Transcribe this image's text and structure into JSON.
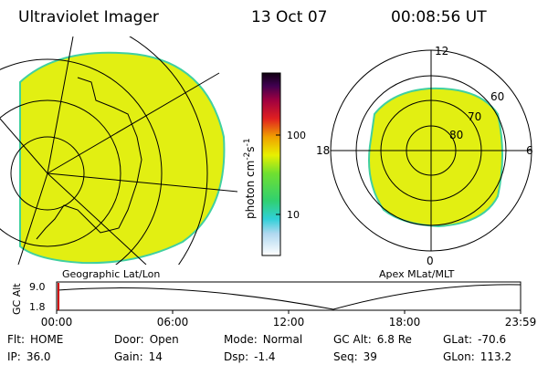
{
  "header": {
    "title": "Ultraviolet Imager",
    "date": "13 Oct 07",
    "time": "00:08:56 UT"
  },
  "colorbar": {
    "label": "photon cm",
    "exp1": "-2",
    "unit2": "s",
    "exp2": "-1",
    "tick_labels": [
      "100",
      "10"
    ]
  },
  "left_panel": {
    "label": "Geographic Lat/Lon"
  },
  "right_panel": {
    "label": "Apex MLat/MLT",
    "mlt_labels": [
      "12",
      "6",
      "0",
      "18"
    ],
    "mlat_labels": [
      "60",
      "70",
      "80"
    ]
  },
  "altitude_plot": {
    "axis_label": "GC Alt",
    "y_labels": [
      "9.0",
      "1.8"
    ],
    "x_labels": [
      "00:00",
      "06:00",
      "12:00",
      "18:00",
      "23:59"
    ]
  },
  "info": [
    [
      {
        "label": "Flt:",
        "value": "HOME"
      },
      {
        "label": "Door:",
        "value": "Open"
      },
      {
        "label": "Mode:",
        "value": "Normal"
      },
      {
        "label": "GC Alt:",
        "value": "6.8 Re"
      },
      {
        "label": "GLat:",
        "value": "-70.6"
      }
    ],
    [
      {
        "label": "IP:",
        "value": "36.0"
      },
      {
        "label": "Gain:",
        "value": "14"
      },
      {
        "label": "Dsp:",
        "value": "-1.4"
      },
      {
        "label": "Seq:",
        "value": "39"
      },
      {
        "label": "GLon:",
        "value": "113.2"
      }
    ]
  ]
}
